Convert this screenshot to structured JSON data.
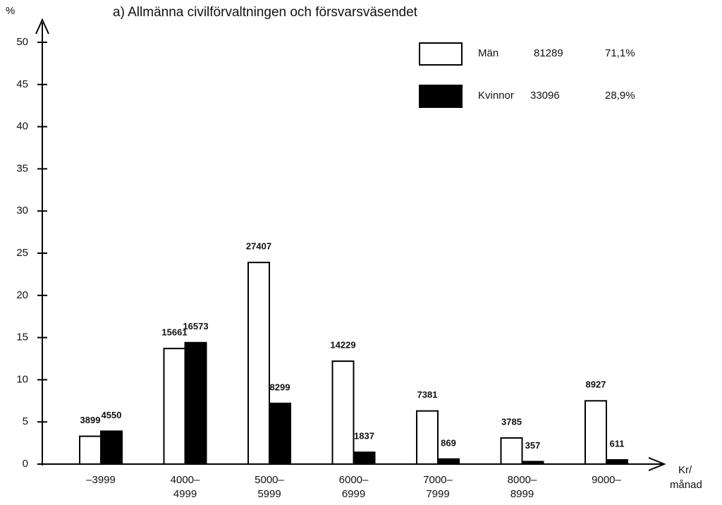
{
  "chart_data": {
    "type": "bar",
    "title": "a) Allmänna civilförvaltningen och försvarsväsendet",
    "y_label": "%",
    "x_label": [
      "Kr/",
      "månad"
    ],
    "categories": [
      [
        "–3999"
      ],
      [
        "4000–",
        "4999"
      ],
      [
        "5000–",
        "5999"
      ],
      [
        "6000–",
        "6999"
      ],
      [
        "7000–",
        "7999"
      ],
      [
        "8000–",
        "8999"
      ],
      [
        "9000–"
      ]
    ],
    "series": [
      {
        "name": "Män",
        "color": "#ffffff",
        "legend_total": 81289,
        "legend_share": "71,1%",
        "values": [
          3.3,
          13.7,
          23.9,
          12.2,
          6.3,
          3.1,
          7.5
        ],
        "counts": [
          3899,
          15661,
          27407,
          14229,
          7381,
          3785,
          8927
        ]
      },
      {
        "name": "Kvinnor",
        "color": "#000000",
        "legend_total": 33096,
        "legend_share": "28,9%",
        "values": [
          3.9,
          14.4,
          7.2,
          1.4,
          0.6,
          0.3,
          0.5
        ],
        "counts": [
          4550,
          16573,
          8299,
          1837,
          869,
          357,
          611
        ]
      }
    ],
    "ylim": [
      0,
      50
    ],
    "yticks": [
      0,
      5,
      10,
      15,
      20,
      25,
      30,
      35,
      40,
      45,
      50
    ]
  }
}
